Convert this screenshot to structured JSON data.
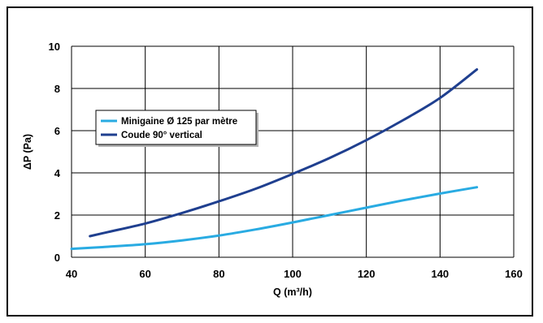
{
  "chart_data": {
    "type": "line",
    "title": "",
    "xlabel": "Q (m³/h)",
    "ylabel": "ΔP (Pa)",
    "xlim": [
      40,
      160
    ],
    "ylim": [
      0,
      10
    ],
    "xticks": [
      40,
      60,
      80,
      100,
      120,
      140,
      160
    ],
    "yticks": [
      0,
      2,
      4,
      6,
      8,
      10
    ],
    "grid": true,
    "legend_position": "upper-left",
    "series": [
      {
        "name": "Minigaine Ø 125 par mètre",
        "color": "#29abe2",
        "x": [
          40,
          50,
          60,
          70,
          80,
          90,
          100,
          110,
          120,
          130,
          140,
          150
        ],
        "y": [
          0.4,
          0.5,
          0.62,
          0.8,
          1.03,
          1.32,
          1.65,
          2.0,
          2.35,
          2.7,
          3.02,
          3.32
        ]
      },
      {
        "name": "Coude 90° vertical",
        "color": "#1f3f8f",
        "x": [
          45,
          50,
          60,
          70,
          80,
          90,
          100,
          110,
          120,
          130,
          140,
          150
        ],
        "y": [
          1.0,
          1.2,
          1.6,
          2.1,
          2.65,
          3.25,
          3.95,
          4.7,
          5.55,
          6.5,
          7.55,
          8.9
        ]
      }
    ]
  }
}
